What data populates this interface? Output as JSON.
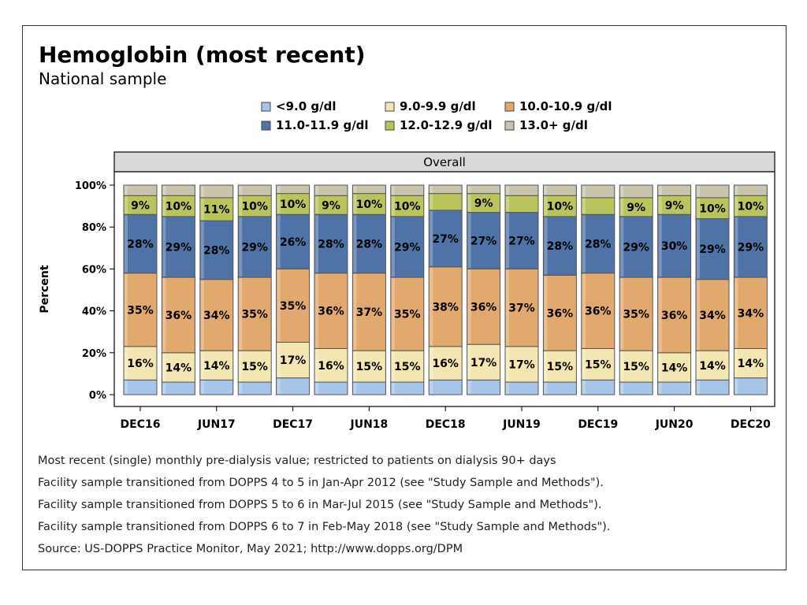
{
  "chart_data": {
    "type": "bar",
    "stacked": true,
    "title": "Hemoglobin (most recent)",
    "subtitle": "National sample",
    "panel_label": "Overall",
    "ylabel": "Percent",
    "xlabel": "",
    "ylim": [
      0,
      100
    ],
    "y_ticks": [
      "0%",
      "20%",
      "40%",
      "60%",
      "80%",
      "100%"
    ],
    "categories": [
      "DEC16",
      "MAR17",
      "JUN17",
      "SEP17",
      "DEC17",
      "MAR18",
      "JUN18",
      "SEP18",
      "DEC18",
      "MAR19",
      "JUN19",
      "SEP19",
      "DEC19",
      "MAR20",
      "JUN20",
      "SEP20",
      "DEC20"
    ],
    "x_tick_labels": [
      "DEC16",
      "JUN17",
      "DEC17",
      "JUN18",
      "DEC18",
      "JUN19",
      "DEC19",
      "JUN20",
      "DEC20"
    ],
    "legend_position": "top",
    "series": [
      {
        "name": "<9.0 g/dl",
        "color": "#a6c5e8",
        "values": [
          7,
          6,
          7,
          6,
          8,
          6,
          6,
          6,
          7,
          7,
          6,
          6,
          7,
          6,
          6,
          7,
          8
        ],
        "labels": [
          "",
          "",
          "",
          "",
          "",
          "",
          "",
          "",
          "",
          "",
          "",
          "",
          "",
          "",
          "",
          "",
          ""
        ]
      },
      {
        "name": "9.0-9.9 g/dl",
        "color": "#f3e6b0",
        "values": [
          16,
          14,
          14,
          15,
          17,
          16,
          15,
          15,
          16,
          17,
          17,
          15,
          15,
          15,
          14,
          14,
          14
        ],
        "labels": [
          "16%",
          "14%",
          "14%",
          "15%",
          "17%",
          "16%",
          "15%",
          "15%",
          "16%",
          "17%",
          "17%",
          "15%",
          "15%",
          "15%",
          "14%",
          "14%",
          "14%"
        ]
      },
      {
        "name": "10.0-10.9 g/dl",
        "color": "#e2a96e",
        "values": [
          35,
          36,
          34,
          35,
          35,
          36,
          37,
          35,
          38,
          36,
          37,
          36,
          36,
          35,
          36,
          34,
          34
        ],
        "labels": [
          "35%",
          "36%",
          "34%",
          "35%",
          "35%",
          "36%",
          "37%",
          "35%",
          "38%",
          "36%",
          "37%",
          "36%",
          "36%",
          "35%",
          "36%",
          "34%",
          "34%"
        ]
      },
      {
        "name": "11.0-11.9 g/dl",
        "color": "#4f73a6",
        "values": [
          28,
          29,
          28,
          29,
          26,
          28,
          28,
          29,
          27,
          27,
          27,
          28,
          28,
          29,
          30,
          29,
          29
        ],
        "labels": [
          "28%",
          "29%",
          "28%",
          "29%",
          "26%",
          "28%",
          "28%",
          "29%",
          "27%",
          "27%",
          "27%",
          "28%",
          "28%",
          "29%",
          "30%",
          "29%",
          "29%"
        ]
      },
      {
        "name": "12.0-12.9 g/dl",
        "color": "#b9c45a",
        "values": [
          9,
          10,
          11,
          10,
          10,
          9,
          10,
          10,
          8,
          9,
          8,
          10,
          8,
          9,
          9,
          10,
          10
        ],
        "labels": [
          "9%",
          "10%",
          "11%",
          "10%",
          "10%",
          "9%",
          "10%",
          "10%",
          "",
          "9%",
          "",
          "10%",
          "",
          "9%",
          "9%",
          "10%",
          "10%"
        ]
      },
      {
        "name": "13.0+ g/dl",
        "color": "#c9c3ad",
        "values": [
          5,
          5,
          6,
          5,
          4,
          5,
          4,
          5,
          4,
          4,
          5,
          5,
          6,
          6,
          5,
          6,
          5
        ],
        "labels": [
          "",
          "",
          "",
          "",
          "",
          "",
          "",
          "",
          "",
          "",
          "",
          "",
          "",
          "",
          "",
          "",
          ""
        ]
      }
    ]
  },
  "footnotes": [
    "Most recent (single) monthly pre-dialysis value; restricted to patients on dialysis 90+ days",
    "Facility sample transitioned from DOPPS 4 to 5 in Jan-Apr 2012 (see \"Study Sample and Methods\").",
    "Facility sample transitioned from DOPPS 5 to 6 in Mar-Jul 2015 (see \"Study Sample and Methods\").",
    "Facility sample transitioned from DOPPS 6 to 7 in Feb-May 2018 (see \"Study Sample and Methods\").",
    "Source: US-DOPPS Practice Monitor, May 2021; http://www.dopps.org/DPM"
  ]
}
